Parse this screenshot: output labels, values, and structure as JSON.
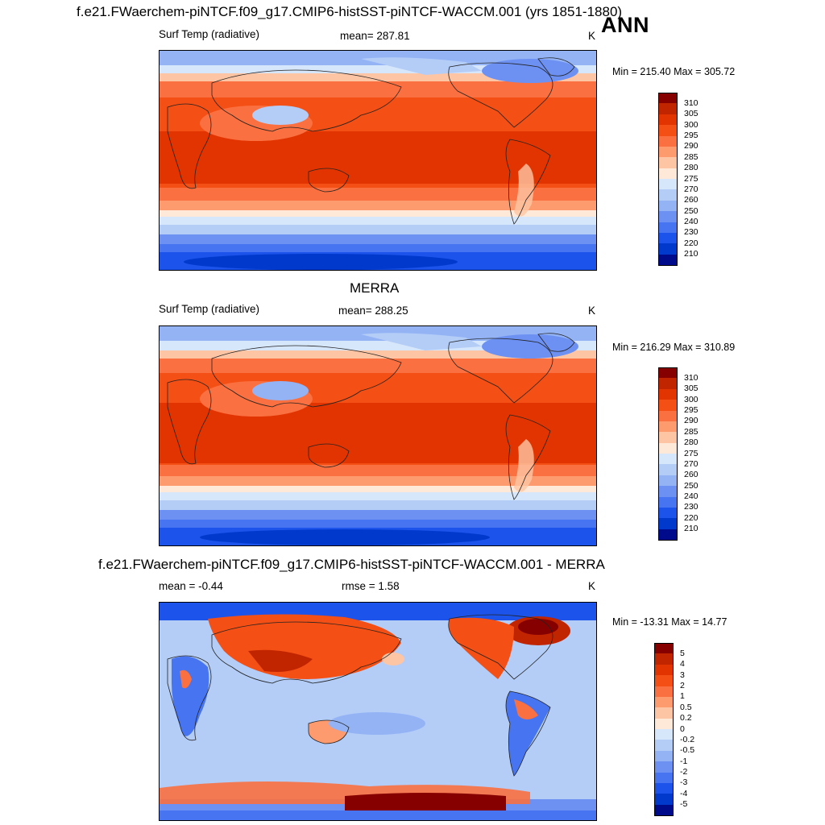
{
  "header": {
    "title": "f.e21.FWaerchem-piNTCF.f09_g17.CMIP6-histSST-piNTCF-WACCM.001 (yrs 1851-1880)",
    "season": "ANN"
  },
  "panels": [
    {
      "id": "model",
      "title": "",
      "left_label": "Surf Temp (radiative)",
      "center_label": "mean= 287.81",
      "units": "K",
      "minmax": "Min = 215.40 Max = 305.72",
      "colorbar": {
        "colors": [
          "#870000",
          "#c12500",
          "#e23400",
          "#f44f14",
          "#fa7040",
          "#fd9a6e",
          "#fec5a4",
          "#fee8d8",
          "#d7e7fb",
          "#b4cdf7",
          "#93b3f5",
          "#6d91f3",
          "#4774f0",
          "#1c53ea",
          "#0039cc",
          "#000b8b"
        ],
        "labels": [
          "310",
          "305",
          "300",
          "295",
          "290",
          "285",
          "280",
          "275",
          "270",
          "260",
          "250",
          "240",
          "230",
          "220",
          "210"
        ]
      }
    },
    {
      "id": "obs",
      "title": "MERRA",
      "left_label": "Surf Temp (radiative)",
      "center_label": "mean= 288.25",
      "units": "K",
      "minmax": "Min = 216.29 Max = 310.89",
      "colorbar": {
        "colors": [
          "#870000",
          "#c12500",
          "#e23400",
          "#f44f14",
          "#fa7040",
          "#fd9a6e",
          "#fec5a4",
          "#fee8d8",
          "#d7e7fb",
          "#b4cdf7",
          "#93b3f5",
          "#6d91f3",
          "#4774f0",
          "#1c53ea",
          "#0039cc",
          "#000b8b"
        ],
        "labels": [
          "310",
          "305",
          "300",
          "295",
          "290",
          "285",
          "280",
          "275",
          "270",
          "260",
          "250",
          "240",
          "230",
          "220",
          "210"
        ]
      }
    },
    {
      "id": "diff",
      "title": "f.e21.FWaerchem-piNTCF.f09_g17.CMIP6-histSST-piNTCF-WACCM.001 - MERRA",
      "left_label": "mean =  -0.44",
      "center_label": "rmse =   1.58",
      "units": "K",
      "minmax": "Min = -13.31 Max =  14.77",
      "colorbar": {
        "colors": [
          "#870000",
          "#c12500",
          "#e23400",
          "#f44f14",
          "#fa7040",
          "#fd9a6e",
          "#fec5a4",
          "#fee8d8",
          "#d7e7fb",
          "#b4cdf7",
          "#93b3f5",
          "#6d91f3",
          "#4774f0",
          "#1c53ea",
          "#0039cc",
          "#000b8b"
        ],
        "labels": [
          "5",
          "4",
          "3",
          "2",
          "1",
          "0.5",
          "0.2",
          "0",
          "-0.2",
          "-0.5",
          "-1",
          "-2",
          "-3",
          "-4",
          "-5"
        ]
      }
    }
  ]
}
